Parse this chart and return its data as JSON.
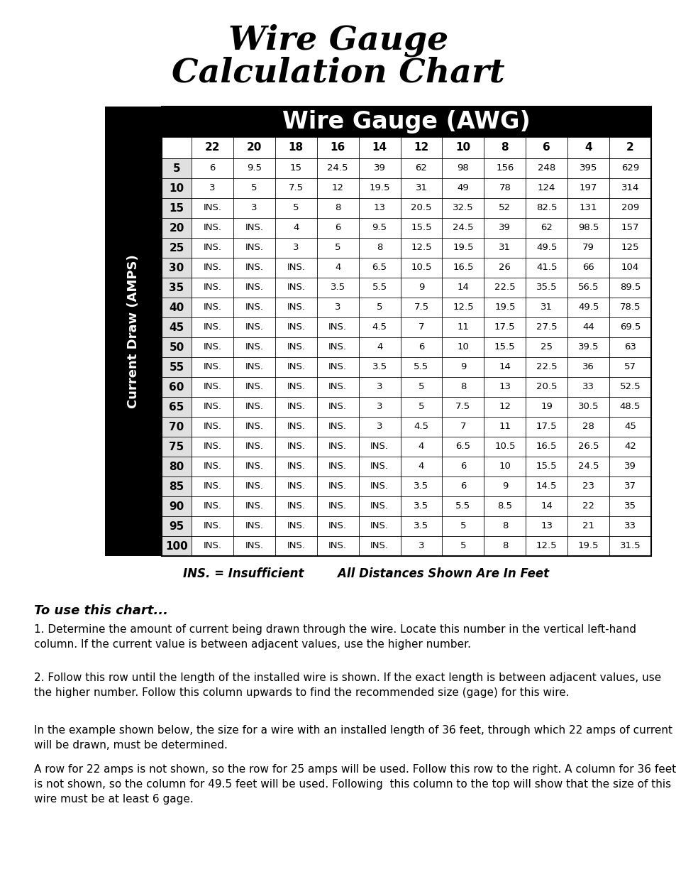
{
  "title_line1": "Wire Gauge",
  "title_line2": "Calculation Chart",
  "header_text": "Wire Gauge (AWG)",
  "col_headers": [
    "22",
    "20",
    "18",
    "16",
    "14",
    "12",
    "10",
    "8",
    "6",
    "4",
    "2"
  ],
  "row_headers": [
    "5",
    "10",
    "15",
    "20",
    "25",
    "30",
    "35",
    "40",
    "45",
    "50",
    "55",
    "60",
    "65",
    "70",
    "75",
    "80",
    "85",
    "90",
    "95",
    "100"
  ],
  "table_data": [
    [
      "6",
      "9.5",
      "15",
      "24.5",
      "39",
      "62",
      "98",
      "156",
      "248",
      "395",
      "629"
    ],
    [
      "3",
      "5",
      "7.5",
      "12",
      "19.5",
      "31",
      "49",
      "78",
      "124",
      "197",
      "314"
    ],
    [
      "INS.",
      "3",
      "5",
      "8",
      "13",
      "20.5",
      "32.5",
      "52",
      "82.5",
      "131",
      "209"
    ],
    [
      "INS.",
      "INS.",
      "4",
      "6",
      "9.5",
      "15.5",
      "24.5",
      "39",
      "62",
      "98.5",
      "157"
    ],
    [
      "INS.",
      "INS.",
      "3",
      "5",
      "8",
      "12.5",
      "19.5",
      "31",
      "49.5",
      "79",
      "125"
    ],
    [
      "INS.",
      "INS.",
      "INS.",
      "4",
      "6.5",
      "10.5",
      "16.5",
      "26",
      "41.5",
      "66",
      "104"
    ],
    [
      "INS.",
      "INS.",
      "INS.",
      "3.5",
      "5.5",
      "9",
      "14",
      "22.5",
      "35.5",
      "56.5",
      "89.5"
    ],
    [
      "INS.",
      "INS.",
      "INS.",
      "3",
      "5",
      "7.5",
      "12.5",
      "19.5",
      "31",
      "49.5",
      "78.5"
    ],
    [
      "INS.",
      "INS.",
      "INS.",
      "INS.",
      "4.5",
      "7",
      "11",
      "17.5",
      "27.5",
      "44",
      "69.5"
    ],
    [
      "INS.",
      "INS.",
      "INS.",
      "INS.",
      "4",
      "6",
      "10",
      "15.5",
      "25",
      "39.5",
      "63"
    ],
    [
      "INS.",
      "INS.",
      "INS.",
      "INS.",
      "3.5",
      "5.5",
      "9",
      "14",
      "22.5",
      "36",
      "57"
    ],
    [
      "INS.",
      "INS.",
      "INS.",
      "INS.",
      "3",
      "5",
      "8",
      "13",
      "20.5",
      "33",
      "52.5"
    ],
    [
      "INS.",
      "INS.",
      "INS.",
      "INS.",
      "3",
      "5",
      "7.5",
      "12",
      "19",
      "30.5",
      "48.5"
    ],
    [
      "INS.",
      "INS.",
      "INS.",
      "INS.",
      "3",
      "4.5",
      "7",
      "11",
      "17.5",
      "28",
      "45"
    ],
    [
      "INS.",
      "INS.",
      "INS.",
      "INS.",
      "INS.",
      "4",
      "6.5",
      "10.5",
      "16.5",
      "26.5",
      "42"
    ],
    [
      "INS.",
      "INS.",
      "INS.",
      "INS.",
      "INS.",
      "4",
      "6",
      "10",
      "15.5",
      "24.5",
      "39"
    ],
    [
      "INS.",
      "INS.",
      "INS.",
      "INS.",
      "INS.",
      "3.5",
      "6",
      "9",
      "14.5",
      "23",
      "37"
    ],
    [
      "INS.",
      "INS.",
      "INS.",
      "INS.",
      "INS.",
      "3.5",
      "5.5",
      "8.5",
      "14",
      "22",
      "35"
    ],
    [
      "INS.",
      "INS.",
      "INS.",
      "INS.",
      "INS.",
      "3.5",
      "5",
      "8",
      "13",
      "21",
      "33"
    ],
    [
      "INS.",
      "INS.",
      "INS.",
      "INS.",
      "INS.",
      "3",
      "5",
      "8",
      "12.5",
      "19.5",
      "31.5"
    ]
  ],
  "footnote_italic": "INS. = Insufficient",
  "footnote_bold_italic": "    All Distances Shown Are In Feet",
  "section_title": "To use this chart...",
  "para1": "1. Determine the amount of current being drawn through the wire. Locate this number in the vertical left-hand\ncolumn. If the current value is between adjacent values, use the higher number.",
  "para2": "2. Follow this row until the length of the installed wire is shown. If the exact length is between adjacent values, use\nthe higher number. Follow this column upwards to find the recommended size (gage) for this wire.",
  "para3": "In the example shown below, the size for a wire with an installed length of 36 feet, through which 22 amps of current\nwill be drawn, must be determined.",
  "para4": "A row for 22 amps is not shown, so the row for 25 amps will be used. Follow this row to the right. A column for 36 feet\nis not shown, so the column for 49.5 feet will be used. Following  this column to the top will show that the size of this\nwire must be at least 6 gage.",
  "ylabel": "Current Draw (AMPS)",
  "bg_color": "#ffffff"
}
